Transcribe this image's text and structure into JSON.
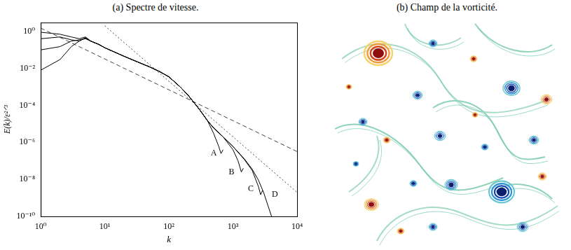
{
  "chart_data": {
    "type": "line",
    "title": "(a) Spectre de vitesse.",
    "x_label": "k",
    "y_label": "E(k)/ε²ᐟ³",
    "log": true,
    "grid": false,
    "xlim": [
      1,
      10000
    ],
    "ylim": [
      1e-10,
      3
    ],
    "xticks": [
      {
        "value": 1,
        "label": "10⁰"
      },
      {
        "value": 10,
        "label": "10¹"
      },
      {
        "value": 100,
        "label": "10²"
      },
      {
        "value": 1000,
        "label": "10³"
      },
      {
        "value": 10000,
        "label": "10⁴"
      }
    ],
    "yticks": [
      {
        "value": 1e-10,
        "label": "10⁻¹⁰"
      },
      {
        "value": 1e-08,
        "label": "10⁻⁸"
      },
      {
        "value": 1e-06,
        "label": "10⁻⁶"
      },
      {
        "value": 0.0001,
        "label": "10⁻⁴"
      },
      {
        "value": 0.01,
        "label": "10⁻²"
      },
      {
        "value": 1,
        "label": "10⁰"
      }
    ],
    "series": [
      {
        "color": "#000000",
        "line_style": "solid",
        "x": [
          1,
          2,
          3,
          4,
          5,
          6,
          8,
          10,
          15,
          20,
          30,
          50,
          70,
          100,
          150,
          200,
          300,
          400,
          500,
          600,
          650,
          700
        ],
        "values": [
          0.008,
          0.03,
          0.15,
          0.3,
          0.45,
          0.3,
          0.2,
          0.13,
          0.07,
          0.045,
          0.025,
          0.012,
          0.007,
          0.0035,
          0.001,
          0.00035,
          6e-05,
          1.5e-05,
          3e-06,
          6e-07,
          2.5e-07,
          4e-07
        ]
      },
      {
        "color": "#000000",
        "line_style": "solid",
        "x": [
          1,
          2,
          3,
          4,
          5,
          6,
          8,
          10,
          15,
          20,
          30,
          50,
          70,
          100,
          150,
          200,
          300,
          400,
          500,
          700,
          1000,
          1200,
          1350,
          1450
        ],
        "values": [
          0.1,
          0.15,
          0.3,
          0.35,
          0.4,
          0.3,
          0.2,
          0.13,
          0.07,
          0.045,
          0.025,
          0.012,
          0.007,
          0.0035,
          0.001,
          0.00035,
          6e-05,
          1.5e-05,
          6e-06,
          2e-06,
          4e-07,
          1e-07,
          2.5e-08,
          4e-08
        ]
      },
      {
        "color": "#000000",
        "line_style": "solid",
        "x": [
          1,
          2,
          3,
          4,
          5,
          6,
          8,
          10,
          15,
          20,
          30,
          50,
          70,
          100,
          150,
          200,
          300,
          400,
          500,
          700,
          1000,
          1500,
          2000,
          2500,
          2700,
          2900
        ],
        "values": [
          0.4,
          0.5,
          0.35,
          0.3,
          0.45,
          0.3,
          0.2,
          0.13,
          0.07,
          0.045,
          0.025,
          0.012,
          0.007,
          0.0035,
          0.001,
          0.00035,
          6e-05,
          1.5e-05,
          6e-06,
          2e-06,
          6e-07,
          1.2e-07,
          3e-08,
          4e-09,
          1.5e-09,
          2.5e-09
        ]
      },
      {
        "color": "#000000",
        "line_style": "solid",
        "x": [
          1,
          2,
          3,
          4,
          5,
          6,
          8,
          10,
          15,
          20,
          30,
          50,
          70,
          100,
          150,
          200,
          300,
          400,
          500,
          700,
          1000,
          1500,
          2000,
          2500,
          3000,
          3500,
          4000
        ],
        "values": [
          0.9,
          0.7,
          0.5,
          0.4,
          0.5,
          0.3,
          0.2,
          0.13,
          0.07,
          0.045,
          0.025,
          0.012,
          0.007,
          0.0035,
          0.001,
          0.00035,
          6e-05,
          1.5e-05,
          6e-06,
          2e-06,
          6e-07,
          1.3e-07,
          3.5e-08,
          9e-09,
          2e-09,
          4e-10,
          1e-10
        ]
      },
      {
        "color": "#444444",
        "line_style": "dashed",
        "x": [
          1,
          10000
        ],
        "values": [
          1.5,
          3.2e-07
        ]
      },
      {
        "color": "#444444",
        "line_style": "dotted",
        "x": [
          10,
          10000
        ],
        "values": [
          2,
          2e-09
        ]
      }
    ],
    "annotations": [
      {
        "text": "A",
        "x": 500,
        "y": 2.5e-07
      },
      {
        "text": "B",
        "x": 950,
        "y": 2.5e-08
      },
      {
        "text": "C",
        "x": 1900,
        "y": 3e-09
      },
      {
        "text": "D",
        "x": 4500,
        "y": 1.5e-09
      }
    ]
  },
  "figure_b": {
    "title": "(b) Champ de la vorticité."
  }
}
